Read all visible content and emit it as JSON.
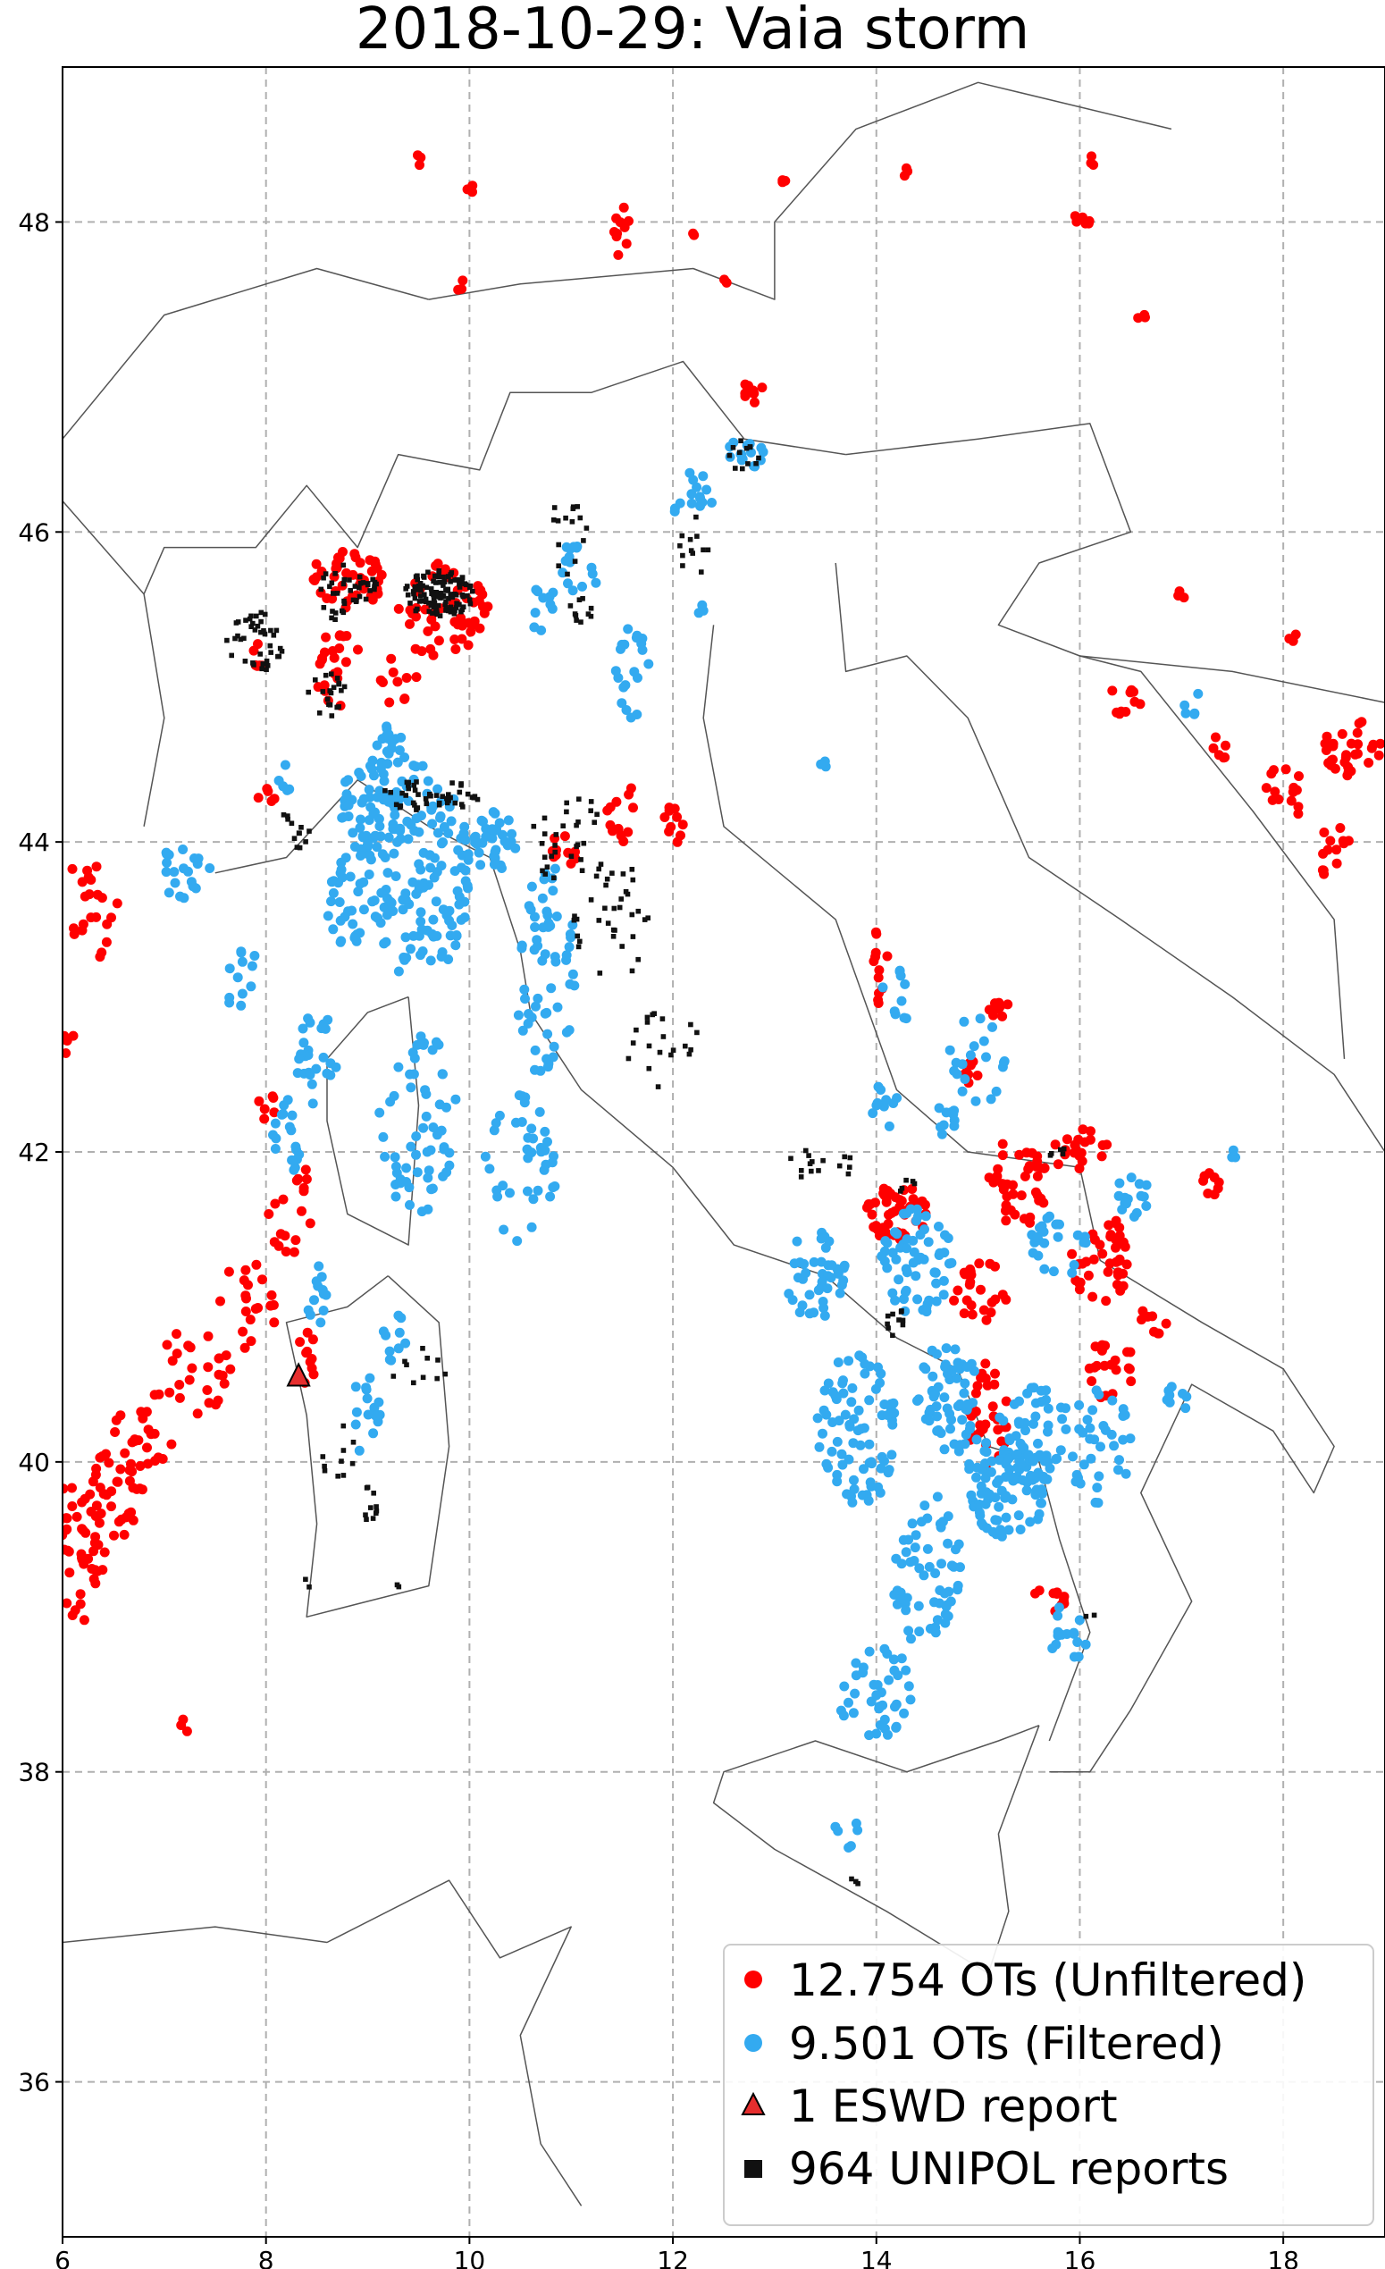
{
  "title": "2018-10-29: Vaia storm",
  "chart_data": {
    "type": "scatter",
    "title": "2018-10-29: Vaia storm",
    "xlabel": "",
    "ylabel": "",
    "xlim": [
      6,
      19
    ],
    "ylim": [
      35,
      49
    ],
    "x_ticks": [
      6,
      8,
      10,
      12,
      14,
      16,
      18
    ],
    "y_ticks": [
      36,
      38,
      40,
      42,
      44,
      46,
      48
    ],
    "grid": true,
    "legend_position": "bottom-right",
    "colors": {
      "unfiltered": "#ff0000",
      "filtered": "#33aaf0",
      "eswd": "#e62e2e",
      "unipol": "#111111",
      "borders": "#555555"
    },
    "legend": [
      {
        "label": "12.754 OTs (Unfiltered)",
        "marker": "circle",
        "color": "#ff0000"
      },
      {
        "label": "9.501 OTs (Filtered)",
        "marker": "circle",
        "color": "#33aaf0"
      },
      {
        "label": "1 ESWD report",
        "marker": "triangle",
        "color": "#e62e2e"
      },
      {
        "label": "964 UNIPOL reports",
        "marker": "square",
        "color": "#111111"
      }
    ],
    "series": [
      {
        "name": "12.754 OTs (Unfiltered)",
        "clusters": [
          [
            6.1,
            39.4,
            0.35,
            0.45,
            60
          ],
          [
            6.5,
            39.8,
            0.3,
            0.3,
            30
          ],
          [
            6.8,
            40.2,
            0.3,
            0.3,
            25
          ],
          [
            7.3,
            40.6,
            0.35,
            0.3,
            25
          ],
          [
            7.8,
            41.0,
            0.3,
            0.3,
            20
          ],
          [
            8.2,
            41.5,
            0.25,
            0.2,
            12
          ],
          [
            6.3,
            43.6,
            0.25,
            0.4,
            22
          ],
          [
            6.1,
            42.7,
            0.1,
            0.1,
            5
          ],
          [
            8.8,
            45.7,
            0.35,
            0.2,
            45
          ],
          [
            9.7,
            45.5,
            0.45,
            0.3,
            45
          ],
          [
            8.7,
            45.1,
            0.25,
            0.25,
            22
          ],
          [
            9.3,
            45.0,
            0.2,
            0.2,
            10
          ],
          [
            8.0,
            44.3,
            0.1,
            0.1,
            5
          ],
          [
            9.5,
            48.4,
            0.05,
            0.05,
            3
          ],
          [
            10.0,
            48.2,
            0.05,
            0.05,
            3
          ],
          [
            11.5,
            47.9,
            0.08,
            0.2,
            10
          ],
          [
            9.9,
            47.6,
            0.05,
            0.05,
            3
          ],
          [
            12.8,
            46.9,
            0.15,
            0.08,
            10
          ],
          [
            11.5,
            44.2,
            0.15,
            0.2,
            12
          ],
          [
            12.0,
            44.1,
            0.12,
            0.15,
            10
          ],
          [
            10.9,
            43.9,
            0.15,
            0.15,
            10
          ],
          [
            14.0,
            43.2,
            0.12,
            0.25,
            12
          ],
          [
            15.2,
            42.9,
            0.12,
            0.08,
            8
          ],
          [
            14.9,
            42.5,
            0.12,
            0.12,
            8
          ],
          [
            14.2,
            41.6,
            0.3,
            0.2,
            50
          ],
          [
            15.4,
            41.8,
            0.3,
            0.3,
            40
          ],
          [
            16.2,
            41.3,
            0.3,
            0.3,
            40
          ],
          [
            15.0,
            41.1,
            0.3,
            0.2,
            25
          ],
          [
            15.1,
            40.3,
            0.25,
            0.35,
            35
          ],
          [
            16.3,
            40.6,
            0.25,
            0.2,
            20
          ],
          [
            15.7,
            39.1,
            0.15,
            0.15,
            10
          ],
          [
            16.7,
            40.9,
            0.15,
            0.1,
            8
          ],
          [
            16.0,
            42.0,
            0.3,
            0.15,
            20
          ],
          [
            17.3,
            41.8,
            0.1,
            0.1,
            8
          ],
          [
            14.3,
            48.3,
            0.05,
            0.05,
            3
          ],
          [
            13.1,
            48.3,
            0.05,
            0.05,
            3
          ],
          [
            16.1,
            48.4,
            0.05,
            0.05,
            3
          ],
          [
            16.0,
            48.0,
            0.1,
            0.05,
            6
          ],
          [
            16.6,
            47.4,
            0.05,
            0.05,
            3
          ],
          [
            17.0,
            45.6,
            0.05,
            0.05,
            3
          ],
          [
            18.1,
            45.3,
            0.05,
            0.05,
            3
          ],
          [
            16.4,
            44.9,
            0.2,
            0.1,
            10
          ],
          [
            17.4,
            44.6,
            0.1,
            0.1,
            6
          ],
          [
            18.7,
            44.6,
            0.3,
            0.2,
            30
          ],
          [
            18.0,
            44.3,
            0.2,
            0.2,
            14
          ],
          [
            18.5,
            44.0,
            0.15,
            0.15,
            10
          ],
          [
            18.4,
            43.8,
            0.05,
            0.05,
            3
          ],
          [
            7.2,
            38.3,
            0.05,
            0.05,
            3
          ],
          [
            8.4,
            40.7,
            0.1,
            0.2,
            10
          ],
          [
            8.4,
            41.8,
            0.1,
            0.1,
            6
          ],
          [
            8.0,
            42.3,
            0.1,
            0.1,
            6
          ],
          [
            12.2,
            47.9,
            0.03,
            0.03,
            2
          ],
          [
            12.5,
            47.6,
            0.03,
            0.03,
            2
          ],
          [
            8.0,
            45.2,
            0.15,
            0.1,
            6
          ],
          [
            10.0,
            45.5,
            0.2,
            0.15,
            12
          ]
        ]
      },
      {
        "name": "9.501 OTs (Filtered)",
        "clusters": [
          [
            9.0,
            44.2,
            0.3,
            0.3,
            60
          ],
          [
            9.5,
            43.8,
            0.5,
            0.7,
            140
          ],
          [
            10.2,
            44.0,
            0.3,
            0.2,
            40
          ],
          [
            8.8,
            43.6,
            0.2,
            0.3,
            30
          ],
          [
            10.7,
            43.2,
            0.35,
            0.7,
            60
          ],
          [
            9.5,
            42.2,
            0.4,
            0.6,
            60
          ],
          [
            10.5,
            41.9,
            0.35,
            0.5,
            40
          ],
          [
            8.5,
            42.6,
            0.2,
            0.3,
            25
          ],
          [
            8.2,
            42.1,
            0.15,
            0.3,
            18
          ],
          [
            8.5,
            41.0,
            0.1,
            0.3,
            12
          ],
          [
            9.0,
            40.3,
            0.15,
            0.3,
            15
          ],
          [
            9.3,
            40.8,
            0.15,
            0.2,
            10
          ],
          [
            7.2,
            43.8,
            0.25,
            0.2,
            20
          ],
          [
            7.8,
            43.1,
            0.25,
            0.2,
            12
          ],
          [
            8.2,
            44.4,
            0.1,
            0.1,
            5
          ],
          [
            11.1,
            45.8,
            0.2,
            0.2,
            15
          ],
          [
            11.6,
            45.1,
            0.2,
            0.3,
            20
          ],
          [
            12.2,
            46.2,
            0.2,
            0.2,
            15
          ],
          [
            12.7,
            46.5,
            0.2,
            0.1,
            15
          ],
          [
            10.7,
            45.5,
            0.15,
            0.2,
            10
          ],
          [
            15.3,
            39.9,
            0.4,
            0.4,
            100
          ],
          [
            15.6,
            40.2,
            0.3,
            0.3,
            40
          ],
          [
            14.7,
            40.4,
            0.3,
            0.4,
            60
          ],
          [
            13.8,
            40.2,
            0.4,
            0.5,
            80
          ],
          [
            14.5,
            39.3,
            0.35,
            0.5,
            60
          ],
          [
            14.0,
            38.5,
            0.4,
            0.3,
            40
          ],
          [
            14.4,
            41.3,
            0.35,
            0.35,
            60
          ],
          [
            13.4,
            41.2,
            0.3,
            0.3,
            40
          ],
          [
            16.2,
            40.1,
            0.3,
            0.4,
            35
          ],
          [
            15.8,
            41.4,
            0.3,
            0.2,
            25
          ],
          [
            14.1,
            42.3,
            0.15,
            0.15,
            10
          ],
          [
            14.7,
            42.2,
            0.15,
            0.15,
            10
          ],
          [
            15.9,
            38.9,
            0.2,
            0.2,
            15
          ],
          [
            13.7,
            37.6,
            0.15,
            0.1,
            6
          ],
          [
            15.0,
            42.6,
            0.3,
            0.3,
            20
          ],
          [
            16.5,
            41.7,
            0.2,
            0.15,
            15
          ],
          [
            16.9,
            40.4,
            0.15,
            0.15,
            8
          ],
          [
            14.2,
            43.0,
            0.15,
            0.2,
            10
          ],
          [
            17.1,
            44.9,
            0.1,
            0.1,
            5
          ],
          [
            17.5,
            42.0,
            0.05,
            0.05,
            3
          ],
          [
            13.5,
            44.5,
            0.05,
            0.05,
            3
          ],
          [
            12.3,
            45.5,
            0.05,
            0.05,
            3
          ],
          [
            9.2,
            44.6,
            0.2,
            0.15,
            20
          ]
        ]
      },
      {
        "name": "1 ESWD report",
        "points": [
          [
            8.32,
            40.55
          ]
        ]
      },
      {
        "name": "964 UNIPOL reports",
        "clusters": [
          [
            9.7,
            45.6,
            0.35,
            0.15,
            120
          ],
          [
            8.8,
            45.6,
            0.3,
            0.2,
            40
          ],
          [
            7.9,
            45.3,
            0.3,
            0.2,
            40
          ],
          [
            8.6,
            45.0,
            0.2,
            0.2,
            20
          ],
          [
            9.6,
            44.3,
            0.5,
            0.1,
            45
          ],
          [
            8.3,
            44.1,
            0.15,
            0.15,
            12
          ],
          [
            11.0,
            44.0,
            0.4,
            0.3,
            30
          ],
          [
            11.4,
            43.5,
            0.4,
            0.4,
            35
          ],
          [
            11.9,
            42.7,
            0.4,
            0.3,
            20
          ],
          [
            11.0,
            46.0,
            0.2,
            0.3,
            15
          ],
          [
            12.2,
            45.9,
            0.2,
            0.2,
            12
          ],
          [
            12.7,
            46.5,
            0.2,
            0.1,
            12
          ],
          [
            13.3,
            41.9,
            0.2,
            0.15,
            10
          ],
          [
            15.8,
            42.0,
            0.2,
            0.05,
            5
          ],
          [
            13.7,
            41.9,
            0.1,
            0.1,
            5
          ],
          [
            14.3,
            41.8,
            0.1,
            0.1,
            5
          ],
          [
            14.2,
            40.9,
            0.1,
            0.1,
            10
          ],
          [
            9.0,
            39.7,
            0.1,
            0.15,
            10
          ],
          [
            8.7,
            40.1,
            0.2,
            0.2,
            10
          ],
          [
            9.5,
            40.6,
            0.3,
            0.2,
            10
          ],
          [
            8.4,
            39.2,
            0.05,
            0.05,
            2
          ],
          [
            9.3,
            39.2,
            0.05,
            0.05,
            2
          ],
          [
            13.8,
            37.3,
            0.05,
            0.03,
            3
          ],
          [
            16.1,
            39.0,
            0.05,
            0.05,
            2
          ],
          [
            11.1,
            45.5,
            0.15,
            0.1,
            10
          ]
        ]
      }
    ]
  }
}
